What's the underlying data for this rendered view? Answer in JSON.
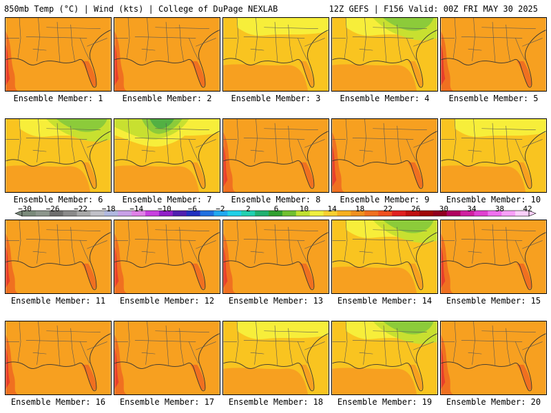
{
  "header": {
    "left": "850mb Temp (°C) | Wind (kts) | College of DuPage NEXLAB",
    "right": "12Z GEFS | F156 Valid: 00Z FRI MAY 30 2025"
  },
  "colors": {
    "red": "#e8402a",
    "orange_red": "#f07020",
    "orange": "#f7a020",
    "gold": "#f9c420",
    "yellow": "#f7ee3a",
    "yellow_green": "#c8e030",
    "green": "#8ccb3a",
    "dark_green": "#52b043"
  },
  "members": [
    {
      "label": "Ensemble Member: 1",
      "style": "warm",
      "tint": "orange",
      "cool": 0
    },
    {
      "label": "Ensemble Member: 2",
      "style": "warm",
      "tint": "orange",
      "cool": 0
    },
    {
      "label": "Ensemble Member: 3",
      "style": "mild",
      "tint": "gold",
      "cool": 1
    },
    {
      "label": "Ensemble Member: 4",
      "style": "cool-ne",
      "tint": "gold",
      "cool": 2
    },
    {
      "label": "Ensemble Member: 5",
      "style": "warm",
      "tint": "orange",
      "cool": 0
    },
    {
      "label": "Ensemble Member: 6",
      "style": "cool-ne",
      "tint": "gold",
      "cool": 2
    },
    {
      "label": "Ensemble Member: 7",
      "style": "cool-nw",
      "tint": "gold",
      "cool": 3
    },
    {
      "label": "Ensemble Member: 8",
      "style": "warm",
      "tint": "orange",
      "cool": 0
    },
    {
      "label": "Ensemble Member: 9",
      "style": "warm",
      "tint": "orange",
      "cool": 0
    },
    {
      "label": "Ensemble Member: 10",
      "style": "mild",
      "tint": "gold",
      "cool": 1
    },
    {
      "label": "Ensemble Member: 11",
      "style": "warm",
      "tint": "orange",
      "cool": 0
    },
    {
      "label": "Ensemble Member: 12",
      "style": "warm",
      "tint": "orange",
      "cool": 0
    },
    {
      "label": "Ensemble Member: 13",
      "style": "warm",
      "tint": "orange",
      "cool": 0
    },
    {
      "label": "Ensemble Member: 14",
      "style": "cool-ne",
      "tint": "gold",
      "cool": 2
    },
    {
      "label": "Ensemble Member: 15",
      "style": "warm",
      "tint": "orange",
      "cool": 0
    },
    {
      "label": "Ensemble Member: 16",
      "style": "warm",
      "tint": "orange",
      "cool": 0
    },
    {
      "label": "Ensemble Member: 17",
      "style": "warm",
      "tint": "orange",
      "cool": 0
    },
    {
      "label": "Ensemble Member: 18",
      "style": "mild",
      "tint": "gold",
      "cool": 1
    },
    {
      "label": "Ensemble Member: 19",
      "style": "cool-ne",
      "tint": "gold",
      "cool": 2
    },
    {
      "label": "Ensemble Member: 20",
      "style": "warm",
      "tint": "orange",
      "cool": 0
    }
  ],
  "colorbar": {
    "labels": [
      "−30",
      "−26",
      "−22",
      "−18",
      "−14",
      "−10",
      "−6",
      "−2",
      "2",
      "6",
      "10",
      "14",
      "18",
      "22",
      "26",
      "30",
      "34",
      "38",
      "42"
    ],
    "colors": [
      "#7a8a7a",
      "#8c968c",
      "#6e6e6e",
      "#8a8a8a",
      "#a8a8a8",
      "#c0c0c8",
      "#b0b8e0",
      "#c8a0e8",
      "#e080e8",
      "#c840e0",
      "#9020c8",
      "#5020b0",
      "#2030c0",
      "#2070e0",
      "#20a8f0",
      "#20d0e8",
      "#20d0b0",
      "#20b070",
      "#30a030",
      "#70c030",
      "#c0e030",
      "#f0f040",
      "#f8d030",
      "#f8b020",
      "#f09020",
      "#f07020",
      "#f05020",
      "#e02020",
      "#c01010",
      "#a00808",
      "#900020",
      "#b00060",
      "#d020a0",
      "#e040d0",
      "#f070f0",
      "#f8a0f8",
      "#fcd0fc"
    ]
  }
}
